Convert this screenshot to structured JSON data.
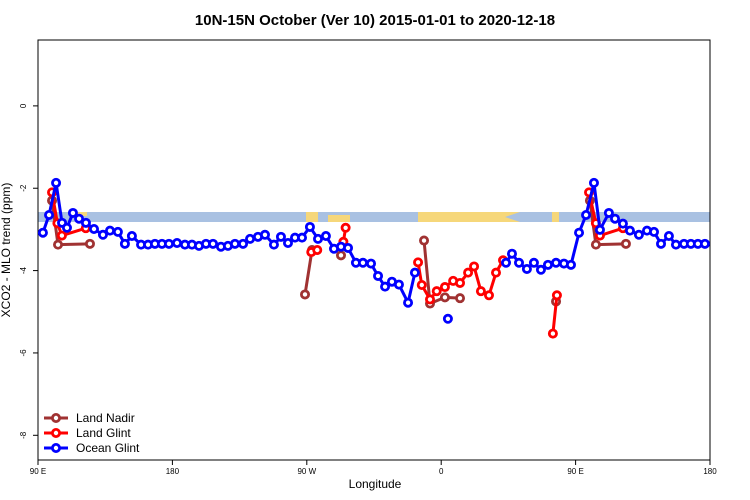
{
  "chart_data": {
    "type": "line",
    "title": "10N-15N October (Ver 10)   2015-01-01 to 2020-12-18",
    "xlabel": "Longitude",
    "ylabel": "XCO2 - MLO trend (ppm)",
    "xlim": [
      90,
      540
    ],
    "xticks": [
      {
        "value": 90,
        "label": "90 E"
      },
      180,
      {
        "value": 270,
        "label": "90 W"
      },
      {
        "value": 360,
        "label": "0"
      },
      {
        "value": 450,
        "label": "90 E"
      },
      {
        "value": 540,
        "label": "180"
      }
    ],
    "ylim": [
      -8.6,
      1.6
    ],
    "yticks": [
      0,
      -2,
      -4,
      -6,
      -8
    ],
    "legend": "bottomleft",
    "series": [
      {
        "name": "Land Nadir",
        "color": "#a03232",
        "x": [
          99.4,
          103.4,
          124.8,
          null,
          268.8,
          273.5,
          null,
          292.9,
          null,
          348.5,
          352.5,
          362.5,
          372.6,
          null,
          436.9,
          null,
          459.6,
          463.6,
          483.7
        ],
        "values": [
          -2.3,
          -3.37,
          -3.35,
          null,
          -4.58,
          -3.5,
          null,
          -3.63,
          null,
          -3.27,
          -4.8,
          -4.65,
          -4.67,
          null,
          -4.75,
          null,
          -2.3,
          -3.37,
          -3.35
        ]
      },
      {
        "name": "Land Glint",
        "color": "#ff0000",
        "x": [
          99.4,
          103,
          106,
          122,
          null,
          273,
          277,
          null,
          294.5,
          296,
          null,
          344.5,
          347,
          352.5,
          357,
          362.5,
          368,
          372.6,
          378,
          382,
          386.6,
          392,
          396.7,
          401.4,
          null,
          434.8,
          437.5,
          null,
          459,
          463.6,
          466.3,
          481.7
        ],
        "values": [
          -2.1,
          -2.85,
          -3.15,
          -2.97,
          null,
          -3.55,
          -3.5,
          null,
          -3.3,
          -2.96,
          null,
          -3.8,
          -4.35,
          -4.7,
          -4.5,
          -4.4,
          -4.25,
          -4.3,
          -4.05,
          -3.9,
          -4.5,
          -4.6,
          -4.05,
          -3.75,
          null,
          -5.53,
          -4.6,
          null,
          -2.1,
          -2.85,
          -3.15,
          -2.97
        ]
      },
      {
        "name": "Ocean Glint",
        "color": "#0000ff",
        "x": [
          93.3,
          97.4,
          102.1,
          106.1,
          109.4,
          113.4,
          117.5,
          122.1,
          127.5,
          133.5,
          138.2,
          143.5,
          148.2,
          152.9,
          159,
          163.7,
          168.3,
          173,
          177.7,
          183.1,
          188.4,
          193.1,
          197.8,
          202.5,
          207.2,
          212.5,
          217.2,
          221.9,
          227.3,
          232,
          237.3,
          242,
          248,
          252.7,
          257.4,
          262.1,
          266.8,
          272.1,
          277.5,
          282.8,
          288.2,
          292.9,
          297.6,
          302.9,
          307.6,
          313,
          317.7,
          322.4,
          327,
          331.7,
          337.8,
          342.4,
          null,
          364.5,
          null,
          403.4,
          407.4,
          412.1,
          417.4,
          422.1,
          426.8,
          431.5,
          436.9,
          442.2,
          446.9,
          452.3,
          457,
          462.3,
          466.3,
          472.3,
          476.4,
          481.7,
          486.4,
          492.4,
          497.8,
          502.5,
          507.2,
          512.5,
          517.2,
          522.6,
          527.2,
          531.9,
          536.6
        ],
        "values": [
          -3.08,
          -2.65,
          -1.87,
          -2.84,
          -2.96,
          -2.6,
          -2.74,
          -2.84,
          -2.99,
          -3.13,
          -3.03,
          -3.06,
          -3.35,
          -3.16,
          -3.37,
          -3.37,
          -3.35,
          -3.35,
          -3.35,
          -3.33,
          -3.37,
          -3.37,
          -3.4,
          -3.35,
          -3.35,
          -3.42,
          -3.4,
          -3.35,
          -3.35,
          -3.23,
          -3.18,
          -3.13,
          -3.37,
          -3.18,
          -3.33,
          -3.2,
          -3.2,
          -2.94,
          -3.23,
          -3.16,
          -3.47,
          -3.42,
          -3.45,
          -3.81,
          -3.81,
          -3.83,
          -4.13,
          -4.39,
          -4.27,
          -4.34,
          -4.78,
          -4.05,
          null,
          -5.17,
          null,
          -3.81,
          -3.59,
          -3.81,
          -3.96,
          -3.81,
          -3.98,
          -3.86,
          -3.81,
          -3.83,
          -3.86,
          -3.08,
          -2.65,
          -1.87,
          -3.01,
          -2.6,
          -2.74,
          -2.86,
          -3.03,
          -3.13,
          -3.03,
          -3.06,
          -3.35,
          -3.16,
          -3.37,
          -3.35,
          -3.35,
          -3.35,
          -3.35
        ]
      }
    ]
  }
}
